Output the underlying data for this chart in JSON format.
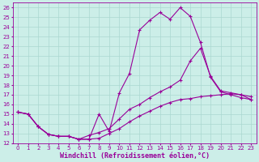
{
  "xlabel": "Windchill (Refroidissement éolien,°C)",
  "bg_color": "#cceee8",
  "grid_color": "#aad8d0",
  "line_color": "#990099",
  "xlim": [
    -0.5,
    23.5
  ],
  "ylim": [
    12,
    26.5
  ],
  "xticks": [
    0,
    1,
    2,
    3,
    4,
    5,
    6,
    7,
    8,
    9,
    10,
    11,
    12,
    13,
    14,
    15,
    16,
    17,
    18,
    19,
    20,
    21,
    22,
    23
  ],
  "yticks": [
    12,
    13,
    14,
    15,
    16,
    17,
    18,
    19,
    20,
    21,
    22,
    23,
    24,
    25,
    26
  ],
  "curve1_x": [
    0,
    1,
    2,
    3,
    4,
    5,
    6,
    7,
    8,
    9,
    10,
    11,
    12,
    13,
    14,
    15,
    16,
    17,
    18,
    19,
    20,
    21,
    22,
    23
  ],
  "curve1_y": [
    15.2,
    15.0,
    13.7,
    12.9,
    12.7,
    12.7,
    12.4,
    12.4,
    15.0,
    13.2,
    17.2,
    19.2,
    23.7,
    24.7,
    25.5,
    24.8,
    26.0,
    25.1,
    22.4,
    18.8,
    17.3,
    17.0,
    16.7,
    16.5
  ],
  "curve2_x": [
    0,
    1,
    2,
    3,
    4,
    5,
    6,
    7,
    8,
    9,
    10,
    11,
    12,
    13,
    14,
    15,
    16,
    17,
    18,
    19,
    20,
    21,
    22,
    23
  ],
  "curve2_y": [
    15.2,
    15.0,
    13.7,
    12.9,
    12.7,
    12.7,
    12.4,
    12.8,
    13.1,
    13.5,
    14.5,
    15.5,
    16.0,
    16.7,
    17.3,
    17.8,
    18.5,
    20.5,
    21.8,
    18.9,
    17.4,
    17.2,
    17.0,
    16.5
  ],
  "curve3_x": [
    0,
    1,
    2,
    3,
    4,
    5,
    6,
    7,
    8,
    9,
    10,
    11,
    12,
    13,
    14,
    15,
    16,
    17,
    18,
    19,
    20,
    21,
    22,
    23
  ],
  "curve3_y": [
    15.2,
    15.0,
    13.7,
    12.9,
    12.7,
    12.7,
    12.4,
    12.4,
    12.5,
    13.0,
    13.5,
    14.2,
    14.8,
    15.3,
    15.8,
    16.2,
    16.5,
    16.6,
    16.8,
    16.9,
    17.0,
    17.1,
    17.0,
    16.8
  ],
  "marker": "+",
  "markersize": 3.5,
  "linewidth": 0.8,
  "tick_fontsize": 5.0,
  "xlabel_fontsize": 6.0
}
